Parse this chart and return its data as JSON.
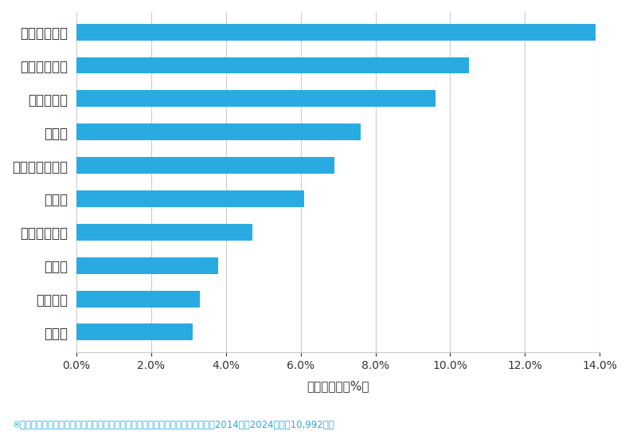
{
  "categories": [
    "塩竈市",
    "多賀城市",
    "名取市",
    "仙台市若林区",
    "石巻市",
    "仙台市宮城野区",
    "大崎市",
    "仙台市泉区",
    "仙台市太白区",
    "仙台市青葉区"
  ],
  "values": [
    3.1,
    3.3,
    3.8,
    4.7,
    6.1,
    6.9,
    7.6,
    9.6,
    10.5,
    13.9
  ],
  "bar_color": "#29ABE2",
  "xlim": [
    0,
    14.0
  ],
  "xticks": [
    0,
    2.0,
    4.0,
    6.0,
    8.0,
    10.0,
    12.0,
    14.0
  ],
  "xlabel": "件数の割合（%）",
  "footnote": "※弊社受付の案件を対象に、受付時に市区町村の回答があったものを集計（期間2014年～2024年、計10,992件）",
  "background_color": "#ffffff",
  "grid_color": "#cccccc",
  "label_color": "#333333",
  "xlabel_color": "#333333",
  "footnote_color": "#29ABE2"
}
